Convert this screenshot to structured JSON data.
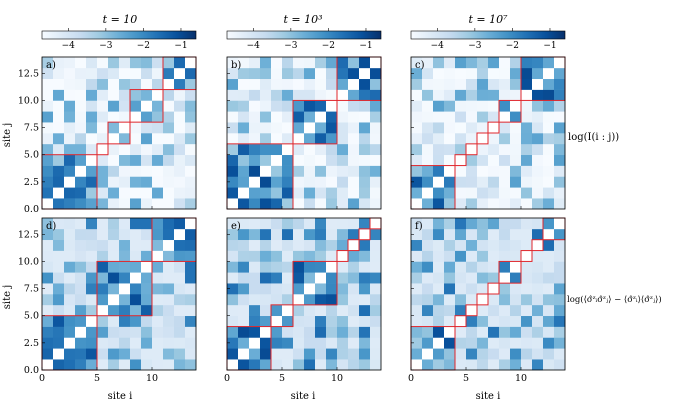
{
  "figure": {
    "column_titles": [
      "t = 10",
      "t = 10³",
      "t = 10⁷"
    ],
    "row_labels": [
      "log(I(i : j))",
      "log(⟨σ̂ᶻᵢσ̂ᶻⱼ⟩ − ⟨σ̂ᶻᵢ⟩⟨σ̂ᶻⱼ⟩)"
    ],
    "xlabel": "site i",
    "ylabel": "site j"
  },
  "colors": {
    "cmap": [
      "#f7fbff",
      "#deebf7",
      "#c6dbef",
      "#9ecae1",
      "#6baed6",
      "#4292c6",
      "#2171b5",
      "#08519c",
      "#08306b"
    ],
    "block_outline": "#e0262b"
  },
  "chart_data": {
    "type": "heatmap",
    "n_sites": 14,
    "colorbar": {
      "vmin": -4.7,
      "vmax": -0.6,
      "ticks": [
        -4,
        -3,
        -2,
        -1
      ],
      "tick_labels": [
        "−4",
        "−3",
        "−2",
        "−1"
      ]
    },
    "x_ticks": [
      0,
      5,
      10
    ],
    "x_tick_labels": [
      "0",
      "5",
      "10"
    ],
    "y_ticks": [
      0.0,
      2.5,
      5.0,
      7.5,
      10.0,
      12.5
    ],
    "y_tick_labels": [
      "0.0",
      "2.5",
      "5.0",
      "7.5",
      "10.0",
      "12.5"
    ],
    "panels": [
      {
        "label": "a)",
        "row": 0,
        "col": 0,
        "blocks": [
          [
            0,
            5
          ],
          [
            5,
            6
          ],
          [
            6,
            8
          ],
          [
            8,
            11
          ],
          [
            11,
            14
          ]
        ],
        "seed": 11
      },
      {
        "label": "b)",
        "row": 0,
        "col": 1,
        "blocks": [
          [
            0,
            6
          ],
          [
            6,
            10
          ],
          [
            10,
            14
          ]
        ],
        "seed": 23
      },
      {
        "label": "c)",
        "row": 0,
        "col": 2,
        "blocks": [
          [
            0,
            4
          ],
          [
            4,
            5
          ],
          [
            5,
            6
          ],
          [
            6,
            7
          ],
          [
            7,
            8
          ],
          [
            8,
            10
          ],
          [
            10,
            14
          ]
        ],
        "seed": 37
      },
      {
        "label": "d)",
        "row": 1,
        "col": 0,
        "blocks": [
          [
            0,
            5
          ],
          [
            5,
            10
          ],
          [
            10,
            14
          ]
        ],
        "seed": 41
      },
      {
        "label": "e)",
        "row": 1,
        "col": 1,
        "blocks": [
          [
            0,
            4
          ],
          [
            4,
            6
          ],
          [
            6,
            10
          ],
          [
            10,
            11
          ],
          [
            11,
            12
          ],
          [
            12,
            13
          ],
          [
            13,
            14
          ]
        ],
        "seed": 53
      },
      {
        "label": "f)",
        "row": 1,
        "col": 2,
        "blocks": [
          [
            0,
            4
          ],
          [
            4,
            5
          ],
          [
            5,
            6
          ],
          [
            6,
            7
          ],
          [
            7,
            8
          ],
          [
            8,
            10
          ],
          [
            10,
            11
          ],
          [
            11,
            12
          ],
          [
            12,
            14
          ]
        ],
        "seed": 67
      }
    ]
  }
}
